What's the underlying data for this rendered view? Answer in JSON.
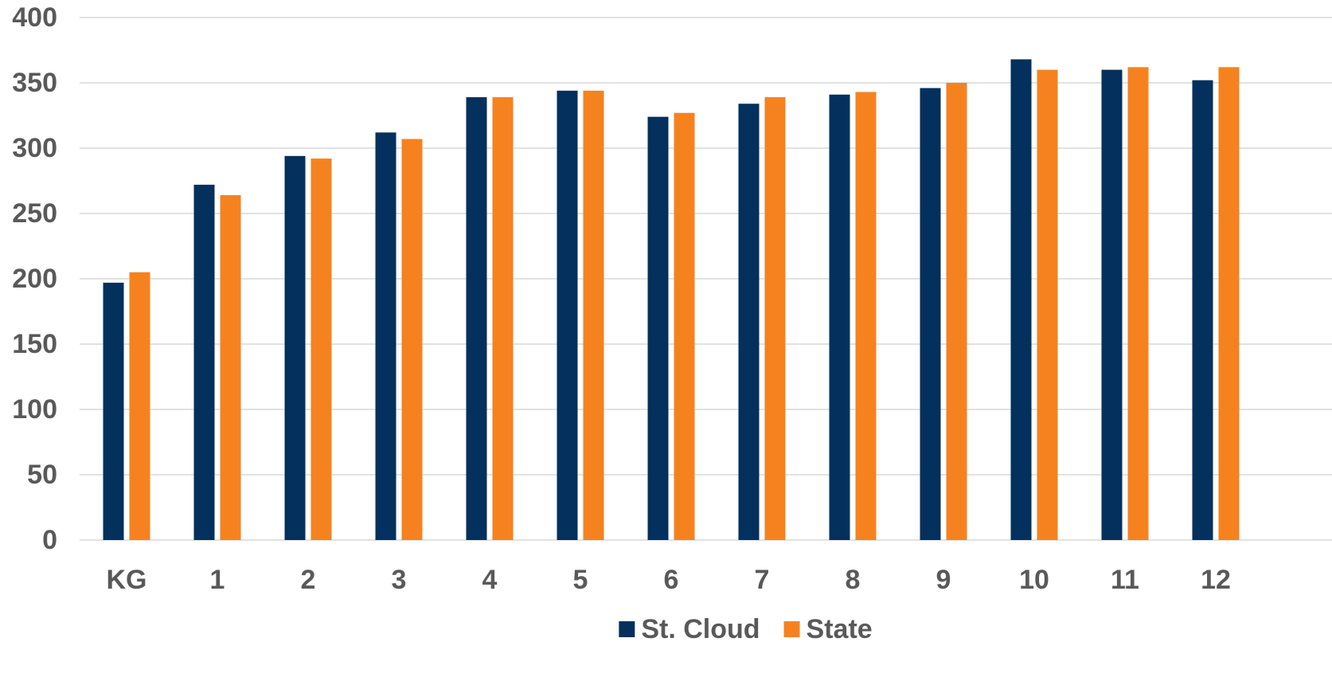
{
  "chart_data": {
    "type": "bar",
    "title": "",
    "xlabel": "",
    "ylabel": "",
    "categories": [
      "KG",
      "1",
      "2",
      "3",
      "4",
      "5",
      "6",
      "7",
      "8",
      "9",
      "10",
      "11",
      "12"
    ],
    "series": [
      {
        "name": "St. Cloud",
        "color": "#03305C",
        "values": [
          197,
          272,
          294,
          312,
          339,
          344,
          324,
          334,
          341,
          346,
          368,
          360,
          352
        ]
      },
      {
        "name": "State",
        "color": "#F5821F",
        "values": [
          205,
          264,
          292,
          307,
          339,
          344,
          327,
          339,
          343,
          350,
          360,
          362,
          362
        ]
      }
    ],
    "ylim": [
      0,
      400
    ],
    "yticks": [
      "0",
      "50",
      "100",
      "150",
      "200",
      "250",
      "300",
      "350",
      "400"
    ],
    "grid": true,
    "legend_position": "bottom"
  }
}
